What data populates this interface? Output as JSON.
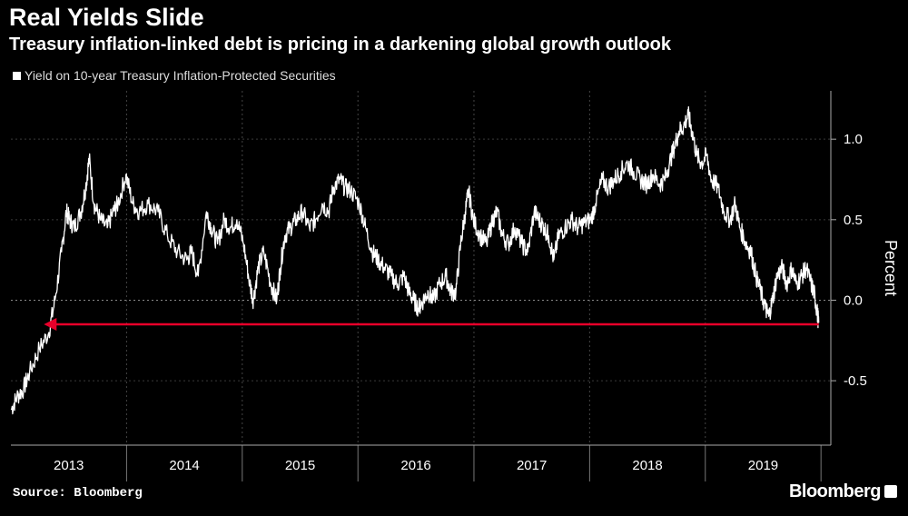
{
  "header": {
    "title": "Real Yields Slide",
    "subtitle": "Treasury inflation-linked debt is pricing in a darkening global growth outlook"
  },
  "footer": {
    "source": "Source: Bloomberg",
    "brand": "Bloomberg"
  },
  "chart_data": {
    "type": "line",
    "ylabel": "Percent",
    "ylim": [
      -0.9,
      1.3
    ],
    "yticks": [
      -0.5,
      0.0,
      0.5,
      1.0
    ],
    "ytick_labels": [
      "-0.5",
      "0.0",
      "0.5",
      "1.0"
    ],
    "x_categories": [
      "2013",
      "2014",
      "2015",
      "2016",
      "2017",
      "2018",
      "2019"
    ],
    "grid": true,
    "legend_position": "top-left",
    "colors": {
      "background": "#000000",
      "line": "#ffffff",
      "arrow": "#e8002a",
      "grid": "#555555"
    },
    "series": [
      {
        "name": "Yield on 10-year Treasury Inflation-Protected Securities",
        "points": [
          [
            "2013-01-02",
            -0.68
          ],
          [
            "2013-01-20",
            -0.6
          ],
          [
            "2013-02-10",
            -0.55
          ],
          [
            "2013-03-01",
            -0.45
          ],
          [
            "2013-04-01",
            -0.3
          ],
          [
            "2013-05-01",
            -0.2
          ],
          [
            "2013-05-20",
            0.0
          ],
          [
            "2013-06-10",
            0.3
          ],
          [
            "2013-06-25",
            0.55
          ],
          [
            "2013-07-05",
            0.5
          ],
          [
            "2013-07-20",
            0.45
          ],
          [
            "2013-08-10",
            0.55
          ],
          [
            "2013-08-25",
            0.7
          ],
          [
            "2013-09-05",
            0.88
          ],
          [
            "2013-09-20",
            0.6
          ],
          [
            "2013-10-10",
            0.5
          ],
          [
            "2013-11-01",
            0.45
          ],
          [
            "2013-11-20",
            0.55
          ],
          [
            "2013-12-05",
            0.6
          ],
          [
            "2013-12-30",
            0.78
          ],
          [
            "2014-01-20",
            0.6
          ],
          [
            "2014-02-10",
            0.55
          ],
          [
            "2014-03-10",
            0.6
          ],
          [
            "2014-04-10",
            0.55
          ],
          [
            "2014-05-10",
            0.4
          ],
          [
            "2014-06-10",
            0.3
          ],
          [
            "2014-07-10",
            0.25
          ],
          [
            "2014-07-25",
            0.3
          ],
          [
            "2014-08-15",
            0.15
          ],
          [
            "2014-09-10",
            0.55
          ],
          [
            "2014-09-25",
            0.45
          ],
          [
            "2014-10-15",
            0.35
          ],
          [
            "2014-11-05",
            0.5
          ],
          [
            "2014-11-25",
            0.45
          ],
          [
            "2014-12-15",
            0.5
          ],
          [
            "2015-01-05",
            0.35
          ],
          [
            "2015-01-25",
            0.1
          ],
          [
            "2015-02-05",
            0.0
          ],
          [
            "2015-02-20",
            0.2
          ],
          [
            "2015-03-10",
            0.3
          ],
          [
            "2015-04-01",
            0.1
          ],
          [
            "2015-04-20",
            0.0
          ],
          [
            "2015-05-01",
            0.2
          ],
          [
            "2015-05-15",
            0.4
          ],
          [
            "2015-06-01",
            0.45
          ],
          [
            "2015-06-20",
            0.5
          ],
          [
            "2015-07-10",
            0.55
          ],
          [
            "2015-08-01",
            0.45
          ],
          [
            "2015-08-20",
            0.5
          ],
          [
            "2015-09-10",
            0.6
          ],
          [
            "2015-10-01",
            0.55
          ],
          [
            "2015-10-15",
            0.7
          ],
          [
            "2015-11-05",
            0.75
          ],
          [
            "2015-11-20",
            0.7
          ],
          [
            "2015-12-10",
            0.68
          ],
          [
            "2016-01-05",
            0.6
          ],
          [
            "2016-01-25",
            0.45
          ],
          [
            "2016-02-15",
            0.3
          ],
          [
            "2016-03-05",
            0.25
          ],
          [
            "2016-03-25",
            0.2
          ],
          [
            "2016-04-15",
            0.15
          ],
          [
            "2016-05-05",
            0.1
          ],
          [
            "2016-05-25",
            0.15
          ],
          [
            "2016-06-10",
            0.05
          ],
          [
            "2016-06-25",
            0.0
          ],
          [
            "2016-07-10",
            -0.05
          ],
          [
            "2016-07-25",
            0.0
          ],
          [
            "2016-08-10",
            0.05
          ],
          [
            "2016-08-25",
            0.0
          ],
          [
            "2016-09-15",
            0.1
          ],
          [
            "2016-10-05",
            0.15
          ],
          [
            "2016-10-20",
            0.05
          ],
          [
            "2016-11-05",
            0.05
          ],
          [
            "2016-11-20",
            0.35
          ],
          [
            "2016-12-05",
            0.55
          ],
          [
            "2016-12-15",
            0.68
          ],
          [
            "2016-12-30",
            0.5
          ],
          [
            "2017-01-20",
            0.4
          ],
          [
            "2017-02-10",
            0.35
          ],
          [
            "2017-03-01",
            0.5
          ],
          [
            "2017-03-15",
            0.55
          ],
          [
            "2017-04-01",
            0.4
          ],
          [
            "2017-04-20",
            0.35
          ],
          [
            "2017-05-10",
            0.45
          ],
          [
            "2017-06-01",
            0.35
          ],
          [
            "2017-06-20",
            0.3
          ],
          [
            "2017-07-10",
            0.55
          ],
          [
            "2017-07-25",
            0.5
          ],
          [
            "2017-08-10",
            0.45
          ],
          [
            "2017-08-25",
            0.4
          ],
          [
            "2017-09-10",
            0.25
          ],
          [
            "2017-09-25",
            0.4
          ],
          [
            "2017-10-15",
            0.45
          ],
          [
            "2017-11-05",
            0.5
          ],
          [
            "2017-11-25",
            0.45
          ],
          [
            "2017-12-15",
            0.48
          ],
          [
            "2018-01-05",
            0.5
          ],
          [
            "2018-01-20",
            0.6
          ],
          [
            "2018-02-10",
            0.75
          ],
          [
            "2018-03-01",
            0.7
          ],
          [
            "2018-03-20",
            0.75
          ],
          [
            "2018-04-10",
            0.8
          ],
          [
            "2018-05-01",
            0.85
          ],
          [
            "2018-05-20",
            0.8
          ],
          [
            "2018-06-10",
            0.75
          ],
          [
            "2018-07-01",
            0.72
          ],
          [
            "2018-07-20",
            0.78
          ],
          [
            "2018-08-10",
            0.72
          ],
          [
            "2018-08-25",
            0.75
          ],
          [
            "2018-09-10",
            0.85
          ],
          [
            "2018-09-25",
            0.95
          ],
          [
            "2018-10-10",
            1.05
          ],
          [
            "2018-10-25",
            1.08
          ],
          [
            "2018-11-08",
            1.15
          ],
          [
            "2018-11-20",
            1.05
          ],
          [
            "2018-12-05",
            0.9
          ],
          [
            "2018-12-20",
            0.85
          ],
          [
            "2019-01-05",
            0.9
          ],
          [
            "2019-01-20",
            0.75
          ],
          [
            "2019-02-10",
            0.7
          ],
          [
            "2019-03-01",
            0.55
          ],
          [
            "2019-03-20",
            0.5
          ],
          [
            "2019-04-05",
            0.6
          ],
          [
            "2019-04-20",
            0.45
          ],
          [
            "2019-05-10",
            0.35
          ],
          [
            "2019-05-25",
            0.3
          ],
          [
            "2019-06-10",
            0.15
          ],
          [
            "2019-06-25",
            0.05
          ],
          [
            "2019-07-10",
            -0.05
          ],
          [
            "2019-07-20",
            -0.1
          ],
          [
            "2019-08-01",
            0.0
          ],
          [
            "2019-08-15",
            0.15
          ],
          [
            "2019-09-01",
            0.2
          ],
          [
            "2019-09-15",
            0.1
          ],
          [
            "2019-10-01",
            0.2
          ],
          [
            "2019-10-15",
            0.1
          ],
          [
            "2019-11-01",
            0.15
          ],
          [
            "2019-11-15",
            0.2
          ],
          [
            "2019-12-01",
            0.1
          ],
          [
            "2019-12-10",
            0.05
          ],
          [
            "2019-12-18",
            -0.05
          ],
          [
            "2019-12-25",
            -0.14
          ]
        ]
      }
    ],
    "annotations": [
      {
        "type": "arrow",
        "y": -0.15,
        "from": "2019-12-25",
        "to": "2013-04-15"
      }
    ]
  }
}
